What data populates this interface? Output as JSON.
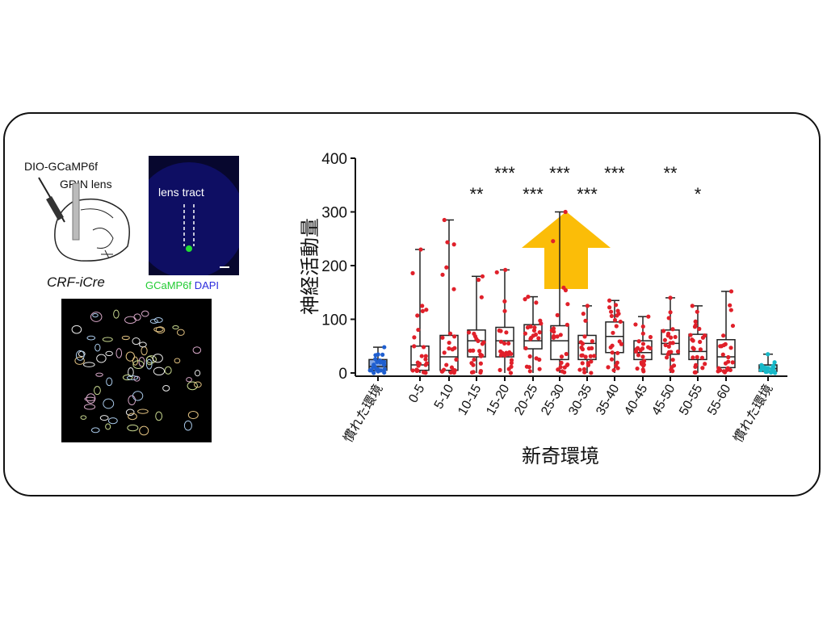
{
  "left_panel": {
    "construct_label": "DIO-GCaMP6f",
    "lens_label": "GRIN lens",
    "mouse_line": "CRF-iCre",
    "histology_label": "lens tract",
    "legend_green": "GCaMP6f",
    "legend_blue": "DAPI"
  },
  "colors": {
    "red": "#e0202a",
    "blue": "#1f5fd0",
    "cyan": "#16b8c8",
    "arrow": "#fbbd08",
    "box": "#222222"
  },
  "chart_data": {
    "type": "box",
    "ylabel": "神経活動量",
    "xlabel": "新奇環境",
    "ylim": [
      0,
      400
    ],
    "yticks": [
      0,
      100,
      200,
      300,
      400
    ],
    "categories": [
      "慣れた環境",
      "0-5",
      "5-10",
      "10-15",
      "15-20",
      "20-25",
      "25-30",
      "30-35",
      "35-40",
      "40-45",
      "45-50",
      "50-55",
      "55-60",
      "慣れた環境"
    ],
    "series": [
      {
        "min": 0,
        "q1": 5,
        "median": 12,
        "q3": 25,
        "max": 48
      },
      {
        "min": 0,
        "q1": 5,
        "median": 15,
        "q3": 50,
        "max": 230
      },
      {
        "min": 0,
        "q1": 5,
        "median": 30,
        "q3": 70,
        "max": 285
      },
      {
        "min": 0,
        "q1": 30,
        "median": 60,
        "q3": 80,
        "max": 180
      },
      {
        "min": 0,
        "q1": 30,
        "median": 60,
        "q3": 85,
        "max": 192
      },
      {
        "min": 0,
        "q1": 45,
        "median": 60,
        "q3": 90,
        "max": 142
      },
      {
        "min": 0,
        "q1": 25,
        "median": 60,
        "q3": 88,
        "max": 300
      },
      {
        "min": 0,
        "q1": 25,
        "median": 55,
        "q3": 70,
        "max": 125
      },
      {
        "min": 0,
        "q1": 38,
        "median": 68,
        "q3": 95,
        "max": 135
      },
      {
        "min": 0,
        "q1": 25,
        "median": 38,
        "q3": 60,
        "max": 105
      },
      {
        "min": 0,
        "q1": 35,
        "median": 55,
        "q3": 80,
        "max": 140
      },
      {
        "min": 0,
        "q1": 25,
        "median": 40,
        "q3": 72,
        "max": 125
      },
      {
        "min": 0,
        "q1": 10,
        "median": 30,
        "q3": 62,
        "max": 152
      },
      {
        "min": 0,
        "q1": 3,
        "median": 8,
        "q3": 15,
        "max": 35
      }
    ],
    "significance": [
      {
        "group": 3,
        "label": "**",
        "row": 1
      },
      {
        "group": 4,
        "label": "***",
        "row": 0
      },
      {
        "group": 5,
        "label": "***",
        "row": 1
      },
      {
        "group": 6,
        "label": "***",
        "row": 0
      },
      {
        "group": 7,
        "label": "***",
        "row": 1
      },
      {
        "group": 8,
        "label": "***",
        "row": 0
      },
      {
        "group": 10,
        "label": "**",
        "row": 0
      },
      {
        "group": 11,
        "label": "*",
        "row": 1
      }
    ],
    "arrow_direction": "up"
  }
}
